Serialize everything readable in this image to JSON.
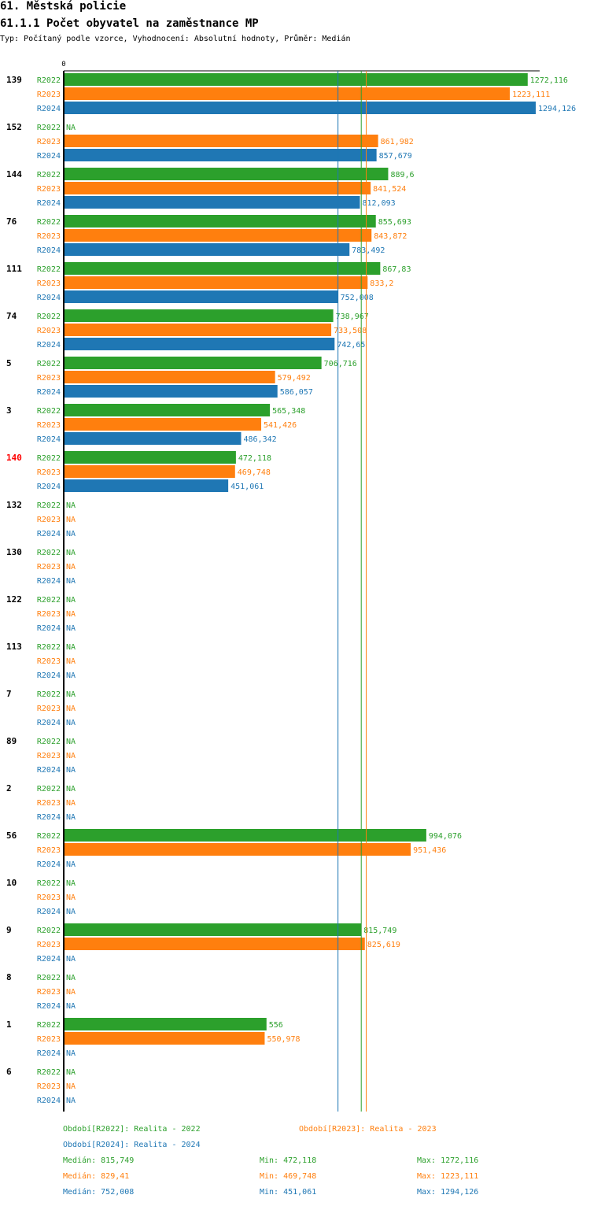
{
  "header": {
    "title": "61. Městská policie",
    "subtitle": "61.1.1 Počet obyvatel na zaměstnance MP",
    "info": "Typ: Počítaný podle vzorce, Vyhodnocení: Absolutní hodnoty, Průměr: Medián"
  },
  "colors": {
    "R2022": "#2ca02c",
    "R2023": "#ff7f0e",
    "R2024": "#1f77b4",
    "highlight": "#ff0000",
    "text": "#000000"
  },
  "chart_data": {
    "type": "bar",
    "orientation": "horizontal",
    "axis_zero_label": "0",
    "xlim": [
      0,
      1320
    ],
    "series_names": [
      "R2022",
      "R2023",
      "R2024"
    ],
    "na_label": "NA",
    "highlight_group": "140",
    "groups": [
      {
        "label": "139",
        "values": [
          1272.116,
          1223.111,
          1294.126
        ],
        "labels": [
          "1272,116",
          "1223,111",
          "1294,126"
        ]
      },
      {
        "label": "152",
        "values": [
          null,
          861.982,
          857.679
        ],
        "labels": [
          "NA",
          "861,982",
          "857,679"
        ]
      },
      {
        "label": "144",
        "values": [
          889.6,
          841.524,
          812.093
        ],
        "labels": [
          "889,6",
          "841,524",
          "812,093"
        ]
      },
      {
        "label": "76",
        "values": [
          855.693,
          843.872,
          783.492
        ],
        "labels": [
          "855,693",
          "843,872",
          "783,492"
        ]
      },
      {
        "label": "111",
        "values": [
          867.83,
          833.2,
          752.008
        ],
        "labels": [
          "867,83",
          "833,2",
          "752,008"
        ]
      },
      {
        "label": "74",
        "values": [
          738.967,
          733.508,
          742.65
        ],
        "labels": [
          "738,967",
          "733,508",
          "742,65"
        ]
      },
      {
        "label": "5",
        "values": [
          706.716,
          579.492,
          586.057
        ],
        "labels": [
          "706,716",
          "579,492",
          "586,057"
        ]
      },
      {
        "label": "3",
        "values": [
          565.348,
          541.426,
          486.342
        ],
        "labels": [
          "565,348",
          "541,426",
          "486,342"
        ]
      },
      {
        "label": "140",
        "values": [
          472.118,
          469.748,
          451.061
        ],
        "labels": [
          "472,118",
          "469,748",
          "451,061"
        ]
      },
      {
        "label": "132",
        "values": [
          null,
          null,
          null
        ],
        "labels": [
          "NA",
          "NA",
          "NA"
        ]
      },
      {
        "label": "130",
        "values": [
          null,
          null,
          null
        ],
        "labels": [
          "NA",
          "NA",
          "NA"
        ]
      },
      {
        "label": "122",
        "values": [
          null,
          null,
          null
        ],
        "labels": [
          "NA",
          "NA",
          "NA"
        ]
      },
      {
        "label": "113",
        "values": [
          null,
          null,
          null
        ],
        "labels": [
          "NA",
          "NA",
          "NA"
        ]
      },
      {
        "label": "7",
        "values": [
          null,
          null,
          null
        ],
        "labels": [
          "NA",
          "NA",
          "NA"
        ]
      },
      {
        "label": "89",
        "values": [
          null,
          null,
          null
        ],
        "labels": [
          "NA",
          "NA",
          "NA"
        ]
      },
      {
        "label": "2",
        "values": [
          null,
          null,
          null
        ],
        "labels": [
          "NA",
          "NA",
          "NA"
        ]
      },
      {
        "label": "56",
        "values": [
          994.076,
          951.436,
          null
        ],
        "labels": [
          "994,076",
          "951,436",
          "NA"
        ]
      },
      {
        "label": "10",
        "values": [
          null,
          null,
          null
        ],
        "labels": [
          "NA",
          "NA",
          "NA"
        ]
      },
      {
        "label": "9",
        "values": [
          815.749,
          825.619,
          null
        ],
        "labels": [
          "815,749",
          "825,619",
          "NA"
        ]
      },
      {
        "label": "8",
        "values": [
          null,
          null,
          null
        ],
        "labels": [
          "NA",
          "NA",
          "NA"
        ]
      },
      {
        "label": "1",
        "values": [
          556,
          550.978,
          null
        ],
        "labels": [
          "556",
          "550,978",
          "NA"
        ]
      },
      {
        "label": "6",
        "values": [
          null,
          null,
          null
        ],
        "labels": [
          "NA",
          "NA",
          "NA"
        ]
      }
    ],
    "median_lines": [
      {
        "series": "R2022",
        "value": 815.749
      },
      {
        "series": "R2023",
        "value": 829.41
      },
      {
        "series": "R2024",
        "value": 752.008
      }
    ]
  },
  "legend": {
    "periods": [
      {
        "series": "R2022",
        "text": "Období[R2022]: Realita - 2022"
      },
      {
        "series": "R2023",
        "text": "Období[R2023]: Realita - 2023"
      },
      {
        "series": "R2024",
        "text": "Období[R2024]: Realita - 2024"
      }
    ],
    "stats": [
      {
        "series": "R2022",
        "median": "Medián: 815,749",
        "min": "Min: 472,118",
        "max": "Max: 1272,116"
      },
      {
        "series": "R2023",
        "median": "Medián: 829,41",
        "min": "Min: 469,748",
        "max": "Max: 1223,111"
      },
      {
        "series": "R2024",
        "median": "Medián: 752,008",
        "min": "Min: 451,061",
        "max": "Max: 1294,126"
      }
    ]
  }
}
